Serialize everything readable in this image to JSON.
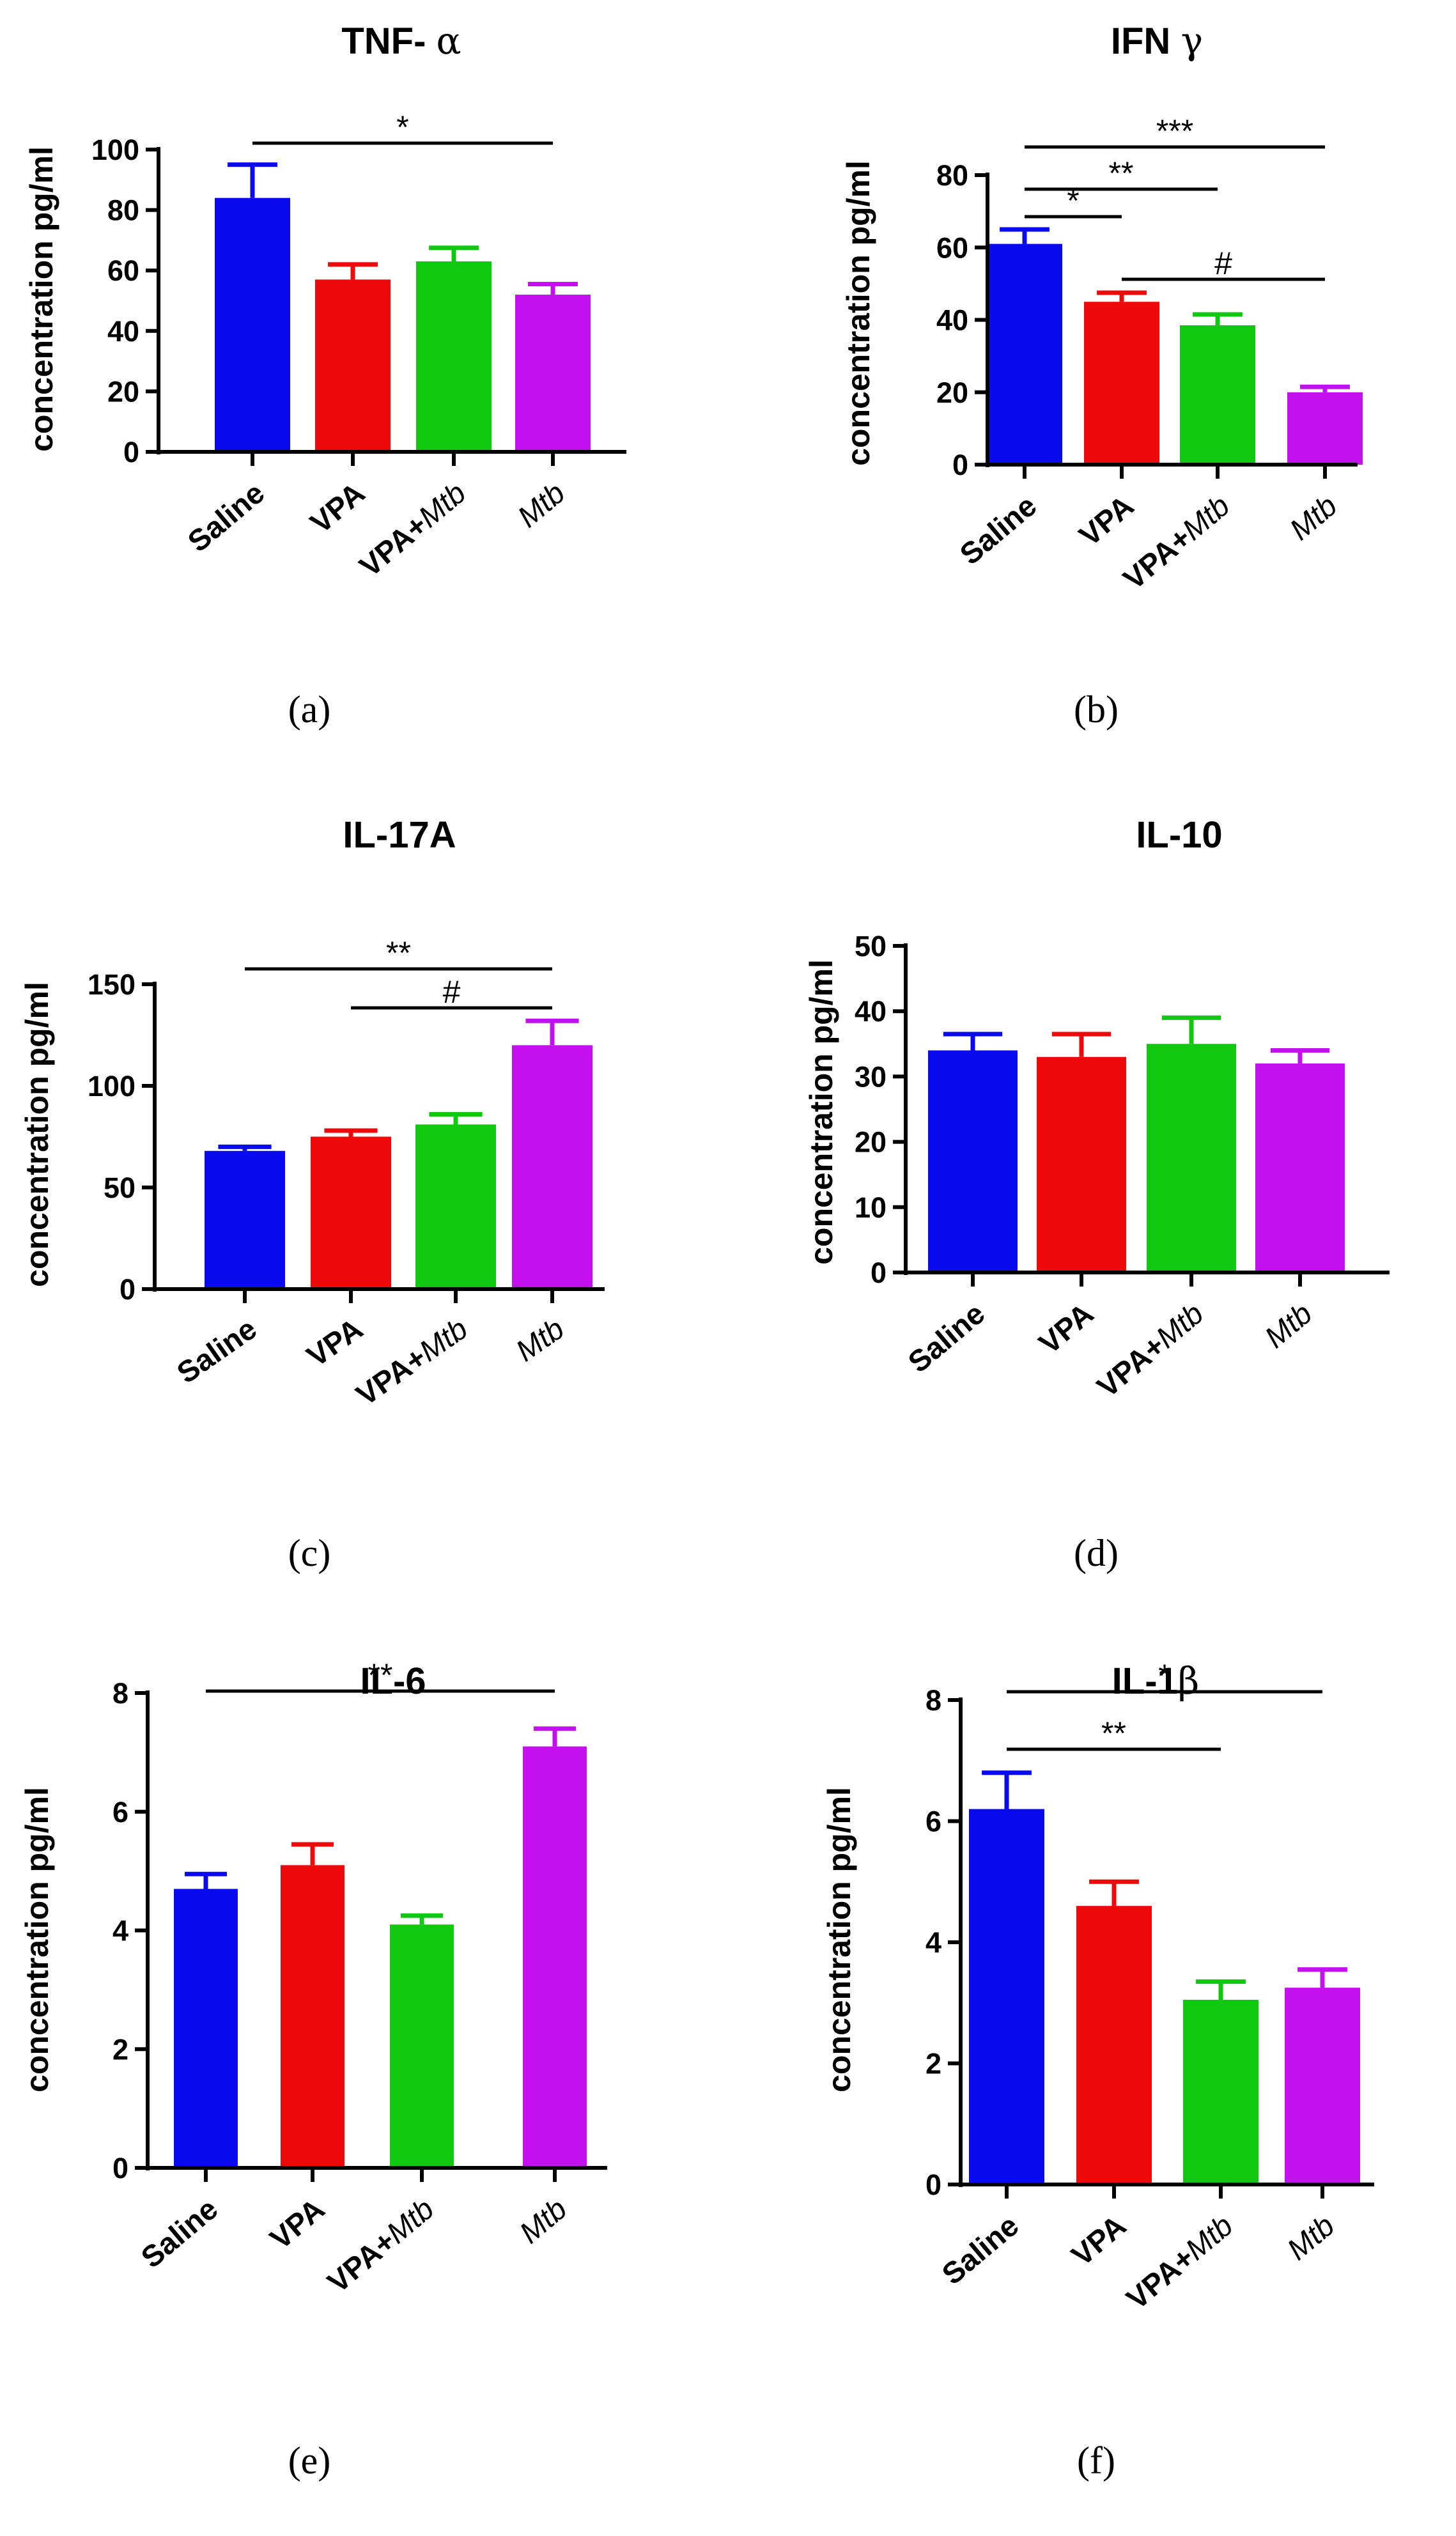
{
  "colors": {
    "Saline": "#0a0aee",
    "VPA": "#ee0a0a",
    "VPA+Mtb": "#10c810",
    "Mtb": "#c410ee",
    "ink": "#000000"
  },
  "chart_data": [
    {
      "type": "bar",
      "panel_label": "(a)",
      "title_parts": [
        {
          "t": "TNF- ",
          "g": false
        },
        {
          "t": "α",
          "g": true
        }
      ],
      "ylabel": "concentration pg/ml",
      "categories": [
        [
          "Saline"
        ],
        [
          "VPA"
        ],
        [
          "VPA+",
          "Mtb"
        ],
        [
          "Mtb"
        ]
      ],
      "italic_parts": [
        [
          false
        ],
        [
          false
        ],
        [
          false,
          true
        ],
        [
          true
        ]
      ],
      "values": [
        84,
        57,
        63,
        52
      ],
      "errors": [
        11,
        5,
        4.5,
        3.5
      ],
      "ylim": [
        0,
        100
      ],
      "yticks": [
        0,
        20,
        40,
        60,
        80,
        100
      ],
      "significance": [
        {
          "from": 0,
          "to": 3,
          "label": "*"
        }
      ]
    },
    {
      "type": "bar",
      "panel_label": "(b)",
      "title_parts": [
        {
          "t": "IFN ",
          "g": false
        },
        {
          "t": "γ",
          "g": true
        }
      ],
      "ylabel": "concentration pg/ml",
      "categories": [
        [
          "Saline"
        ],
        [
          "VPA"
        ],
        [
          "VPA+",
          "Mtb"
        ],
        [
          "Mtb"
        ]
      ],
      "italic_parts": [
        [
          false
        ],
        [
          false
        ],
        [
          false,
          true
        ],
        [
          true
        ]
      ],
      "values": [
        61,
        45,
        38.5,
        20
      ],
      "errors": [
        4,
        2.5,
        3,
        1.5
      ],
      "ylim": [
        0,
        80
      ],
      "yticks": [
        0,
        20,
        40,
        60,
        80
      ],
      "significance": [
        {
          "from": 0,
          "to": 3,
          "label": "***"
        },
        {
          "from": 0,
          "to": 2,
          "label": "**"
        },
        {
          "from": 0,
          "to": 1,
          "label": "*"
        },
        {
          "from": 1,
          "to": 3,
          "label": "#"
        }
      ]
    },
    {
      "type": "bar",
      "panel_label": "(c)",
      "title_parts": [
        {
          "t": "IL-17A",
          "g": false
        }
      ],
      "ylabel": "concentration pg/ml",
      "categories": [
        [
          "Saline"
        ],
        [
          "VPA"
        ],
        [
          "VPA+",
          "Mtb"
        ],
        [
          "Mtb"
        ]
      ],
      "italic_parts": [
        [
          false
        ],
        [
          false
        ],
        [
          false,
          true
        ],
        [
          true
        ]
      ],
      "values": [
        68,
        75,
        81,
        120
      ],
      "errors": [
        2,
        3,
        5,
        12
      ],
      "ylim": [
        0,
        150
      ],
      "yticks": [
        0,
        50,
        100,
        150
      ],
      "significance": [
        {
          "from": 0,
          "to": 3,
          "label": "**"
        },
        {
          "from": 1,
          "to": 3,
          "label": "#"
        }
      ]
    },
    {
      "type": "bar",
      "panel_label": "(d)",
      "title_parts": [
        {
          "t": "IL-10",
          "g": false
        }
      ],
      "ylabel": "concentration pg/ml",
      "categories": [
        [
          "Saline"
        ],
        [
          "VPA"
        ],
        [
          "VPA+",
          "Mtb"
        ],
        [
          "Mtb"
        ]
      ],
      "italic_parts": [
        [
          false
        ],
        [
          false
        ],
        [
          false,
          true
        ],
        [
          true
        ]
      ],
      "values": [
        34,
        33,
        35,
        32
      ],
      "errors": [
        2.5,
        3.5,
        4,
        2
      ],
      "ylim": [
        0,
        50
      ],
      "yticks": [
        0,
        10,
        20,
        30,
        40,
        50
      ],
      "significance": []
    },
    {
      "type": "bar",
      "panel_label": "(e)",
      "title_parts": [
        {
          "t": "IL-6",
          "g": false
        }
      ],
      "ylabel": "concentration pg/ml",
      "categories": [
        [
          "Saline"
        ],
        [
          "VPA"
        ],
        [
          "VPA+",
          "Mtb"
        ],
        [
          "Mtb"
        ]
      ],
      "italic_parts": [
        [
          false
        ],
        [
          false
        ],
        [
          false,
          true
        ],
        [
          true
        ]
      ],
      "values": [
        4.7,
        5.1,
        4.1,
        7.1
      ],
      "errors": [
        0.25,
        0.35,
        0.15,
        0.3
      ],
      "ylim": [
        0,
        8
      ],
      "yticks": [
        0,
        2,
        4,
        6,
        8
      ],
      "significance": [
        {
          "from": 0,
          "to": 3,
          "label": "**"
        }
      ]
    },
    {
      "type": "bar",
      "panel_label": "(f)",
      "title_parts": [
        {
          "t": "IL-1",
          "g": false
        },
        {
          "t": "β",
          "g": true
        }
      ],
      "ylabel": "concentration pg/ml",
      "categories": [
        [
          "Saline"
        ],
        [
          "VPA"
        ],
        [
          "VPA+",
          "Mtb"
        ],
        [
          "Mtb"
        ]
      ],
      "italic_parts": [
        [
          false
        ],
        [
          false
        ],
        [
          false,
          true
        ],
        [
          true
        ]
      ],
      "values": [
        6.2,
        4.6,
        3.05,
        3.25
      ],
      "errors": [
        0.6,
        0.4,
        0.3,
        0.3
      ],
      "ylim": [
        0,
        8
      ],
      "yticks": [
        0,
        2,
        4,
        6,
        8
      ],
      "significance": [
        {
          "from": 0,
          "to": 3,
          "label": "*"
        },
        {
          "from": 0,
          "to": 2,
          "label": "**"
        }
      ]
    }
  ]
}
